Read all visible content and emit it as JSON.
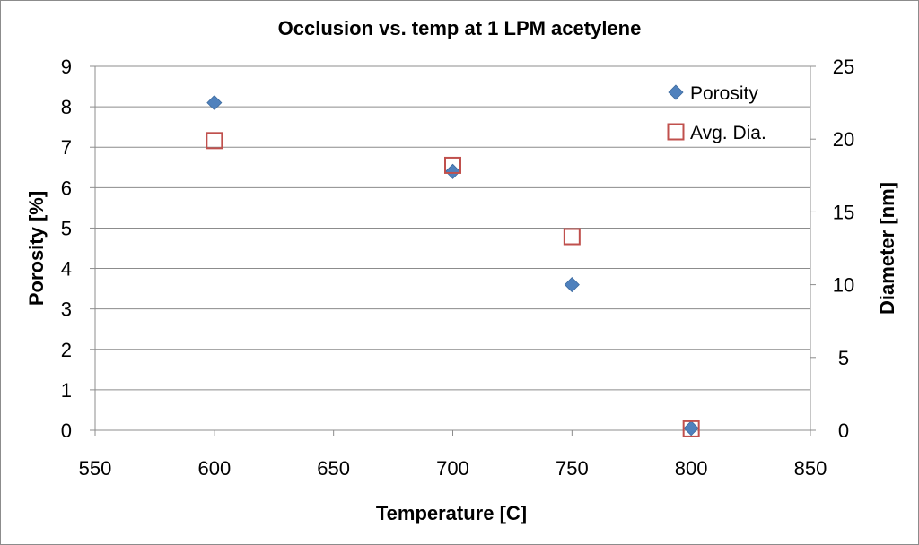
{
  "chart_data": {
    "type": "scatter",
    "title": "Occlusion vs. temp at 1 LPM acetylene",
    "xlabel": "Temperature [C]",
    "ylabel": "Porosity [%]",
    "y2label": "Diameter [nm]",
    "xlim": [
      550,
      850
    ],
    "xticks": [
      550,
      600,
      650,
      700,
      750,
      800,
      850
    ],
    "ylim": [
      0,
      9
    ],
    "yticks": [
      0,
      1,
      2,
      3,
      4,
      5,
      6,
      7,
      8,
      9
    ],
    "y2lim": [
      0,
      25
    ],
    "y2ticks": [
      0,
      5,
      10,
      15,
      20,
      25
    ],
    "grid": true,
    "legend_position": "top-right",
    "series": [
      {
        "name": "Porosity",
        "axis": "left",
        "marker": "diamond",
        "color": "#4f81bd",
        "x": [
          600,
          700,
          750,
          800
        ],
        "y": [
          8.1,
          6.4,
          3.6,
          0.05
        ]
      },
      {
        "name": "Avg. Dia.",
        "axis": "right",
        "marker": "square-open",
        "color": "#c0504d",
        "x": [
          600,
          700,
          750,
          800
        ],
        "y": [
          19.9,
          18.2,
          13.3,
          0.1
        ]
      }
    ]
  }
}
